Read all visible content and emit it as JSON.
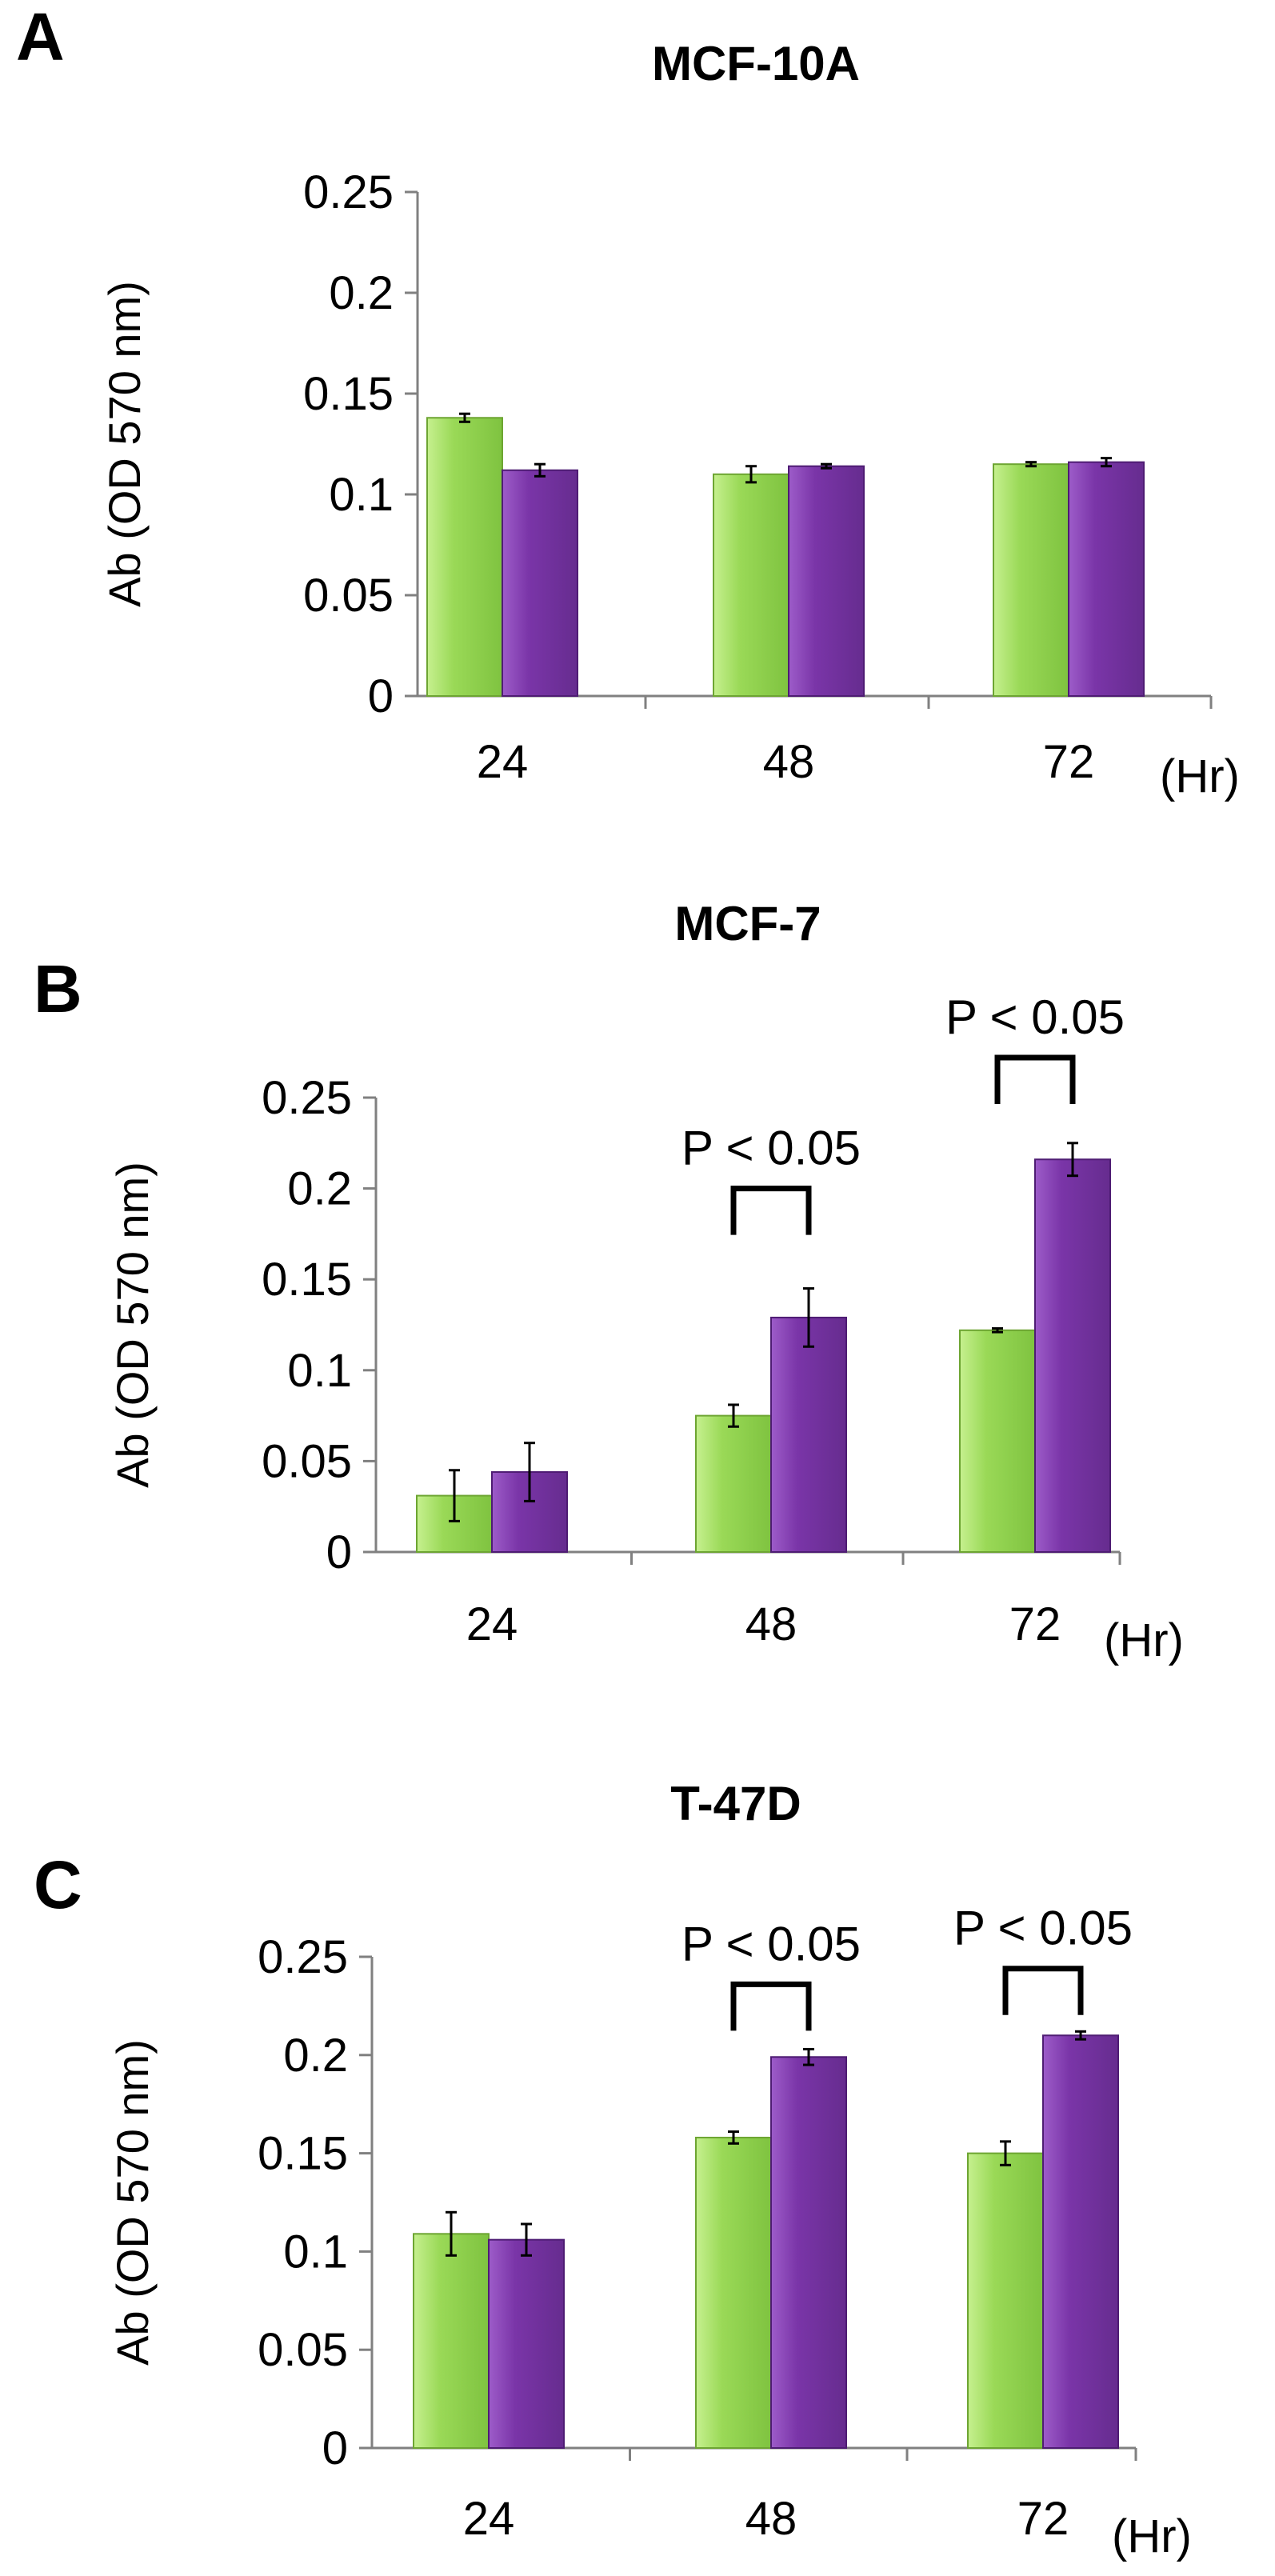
{
  "colors": {
    "green": "#9ad957",
    "green_dark": "#6da532",
    "purple": "#7a35a8",
    "purple_dark": "#4e1c73"
  },
  "chart_data": [
    {
      "panel": "A",
      "type": "bar",
      "title": "MCF-10A",
      "ylabel": "Ab (OD 570 nm)",
      "x_unit": "(Hr)",
      "categories": [
        "24",
        "48",
        "72"
      ],
      "ylim": [
        0,
        0.25
      ],
      "yticks": [
        "0",
        "0.05",
        "0.1",
        "0.15",
        "0.2",
        "0.25"
      ],
      "series": [
        {
          "values": [
            0.138,
            0.11,
            0.115
          ],
          "errors": [
            0.002,
            0.004,
            0.001
          ]
        },
        {
          "values": [
            0.112,
            0.114,
            0.116
          ],
          "errors": [
            0.003,
            0.001,
            0.002
          ]
        }
      ],
      "annotations": []
    },
    {
      "panel": "B",
      "type": "bar",
      "title": "MCF-7",
      "ylabel": "Ab (OD 570 nm)",
      "x_unit": "(Hr)",
      "categories": [
        "24",
        "48",
        "72"
      ],
      "ylim": [
        0,
        0.25
      ],
      "yticks": [
        "0",
        "0.05",
        "0.1",
        "0.15",
        "0.2",
        "0.25"
      ],
      "series": [
        {
          "values": [
            0.031,
            0.075,
            0.122
          ],
          "errors": [
            0.014,
            0.006,
            0.001
          ]
        },
        {
          "values": [
            0.044,
            0.129,
            0.216
          ],
          "errors": [
            0.016,
            0.016,
            0.009
          ]
        }
      ],
      "annotations": [
        {
          "category": "48",
          "text": "P < 0.05",
          "level": 0.2
        },
        {
          "category": "72",
          "text": "P < 0.05",
          "level": 0.272
        }
      ]
    },
    {
      "panel": "C",
      "type": "bar",
      "title": "T-47D",
      "ylabel": "Ab (OD 570 nm)",
      "x_unit": "(Hr)",
      "categories": [
        "24",
        "48",
        "72"
      ],
      "ylim": [
        0,
        0.25
      ],
      "yticks": [
        "0",
        "0.05",
        "0.1",
        "0.15",
        "0.2",
        "0.25"
      ],
      "series": [
        {
          "values": [
            0.109,
            0.158,
            0.15
          ],
          "errors": [
            0.011,
            0.003,
            0.006
          ]
        },
        {
          "values": [
            0.106,
            0.199,
            0.21
          ],
          "errors": [
            0.008,
            0.004,
            0.002
          ]
        }
      ],
      "annotations": [
        {
          "category": "48",
          "text": "P < 0.05",
          "level": 0.236
        },
        {
          "category": "72",
          "text": "P < 0.05",
          "level": 0.244
        }
      ]
    }
  ]
}
